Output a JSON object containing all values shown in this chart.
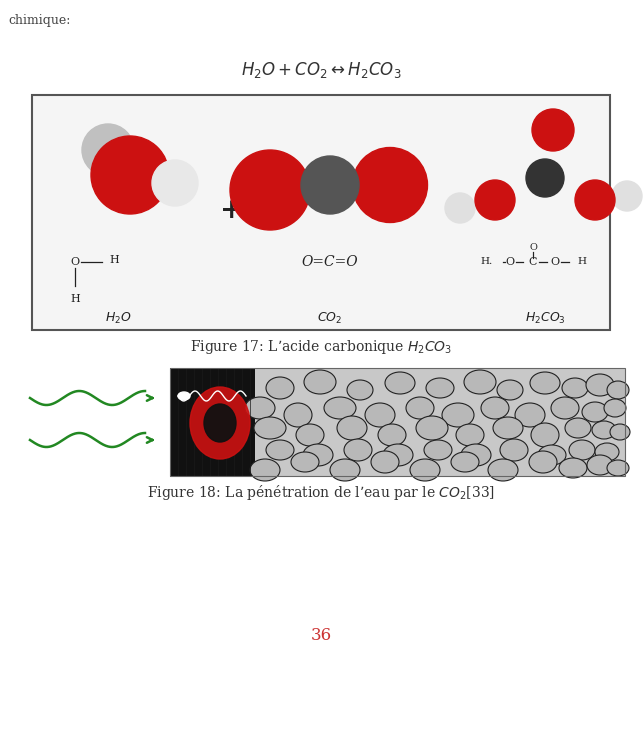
{
  "bg_color": "#ffffff",
  "text_chimique": "chimique:",
  "equation_text": "$H_2O + CO_2 \\leftrightarrow H_2CO_3$",
  "fig17_caption": "Figure 17: L’acide carbonique $H_2CO_3$",
  "fig18_caption": "Figure 18: La pénétration de l’eau par le $CO_2$[33]",
  "page_number": "36",
  "page_number_color": "#cc3333",
  "font_size_eq": 12,
  "font_size_caption": 10,
  "font_size_page": 12,
  "chimique_fontsize": 9,
  "label_fontsize": 9,
  "formula_fontsize": 8
}
